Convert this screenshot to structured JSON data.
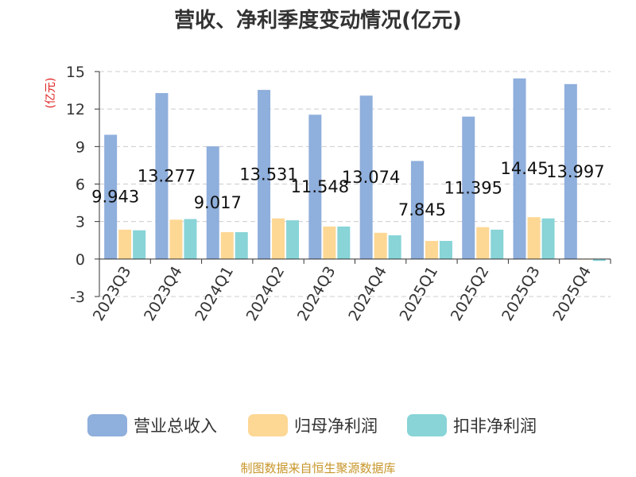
{
  "chart_data": {
    "type": "bar",
    "title": "营收、净利季度变动情况(亿元)",
    "ylabel": "(亿元)",
    "ylim": [
      -3,
      15
    ],
    "yticks": [
      -3,
      0,
      3,
      6,
      9,
      12,
      15
    ],
    "grid": true,
    "legend_position": "bottom",
    "categories": [
      "2023Q3",
      "2023Q4",
      "2024Q1",
      "2024Q2",
      "2024Q3",
      "2024Q4",
      "2025Q1",
      "2025Q2",
      "2025Q3",
      "2025Q4"
    ],
    "series": [
      {
        "name": "营业总收入",
        "color": "#8FAFDC",
        "values": [
          9.943,
          13.277,
          9.017,
          13.531,
          11.548,
          13.074,
          7.845,
          11.395,
          14.45,
          13.997
        ],
        "labels": [
          "9.943",
          "13.277",
          "9.017",
          "13.531",
          "11.548",
          "13.074",
          "7.845",
          "11.395",
          "14.45",
          "13.997"
        ]
      },
      {
        "name": "归母净利润",
        "color": "#FDD794",
        "values": [
          2.35,
          3.15,
          2.15,
          3.25,
          2.6,
          2.1,
          1.45,
          2.55,
          3.35,
          0.0
        ]
      },
      {
        "name": "扣非净利润",
        "color": "#88D4D7",
        "values": [
          2.3,
          3.2,
          2.15,
          3.1,
          2.6,
          1.9,
          1.45,
          2.35,
          3.25,
          -0.15
        ]
      }
    ],
    "source": "制图数据来自恒生聚源数据库",
    "colors": {
      "title": "#333333",
      "ylabel": "#E02020",
      "source": "#C8962A",
      "grid": "#CCCCCC"
    }
  }
}
